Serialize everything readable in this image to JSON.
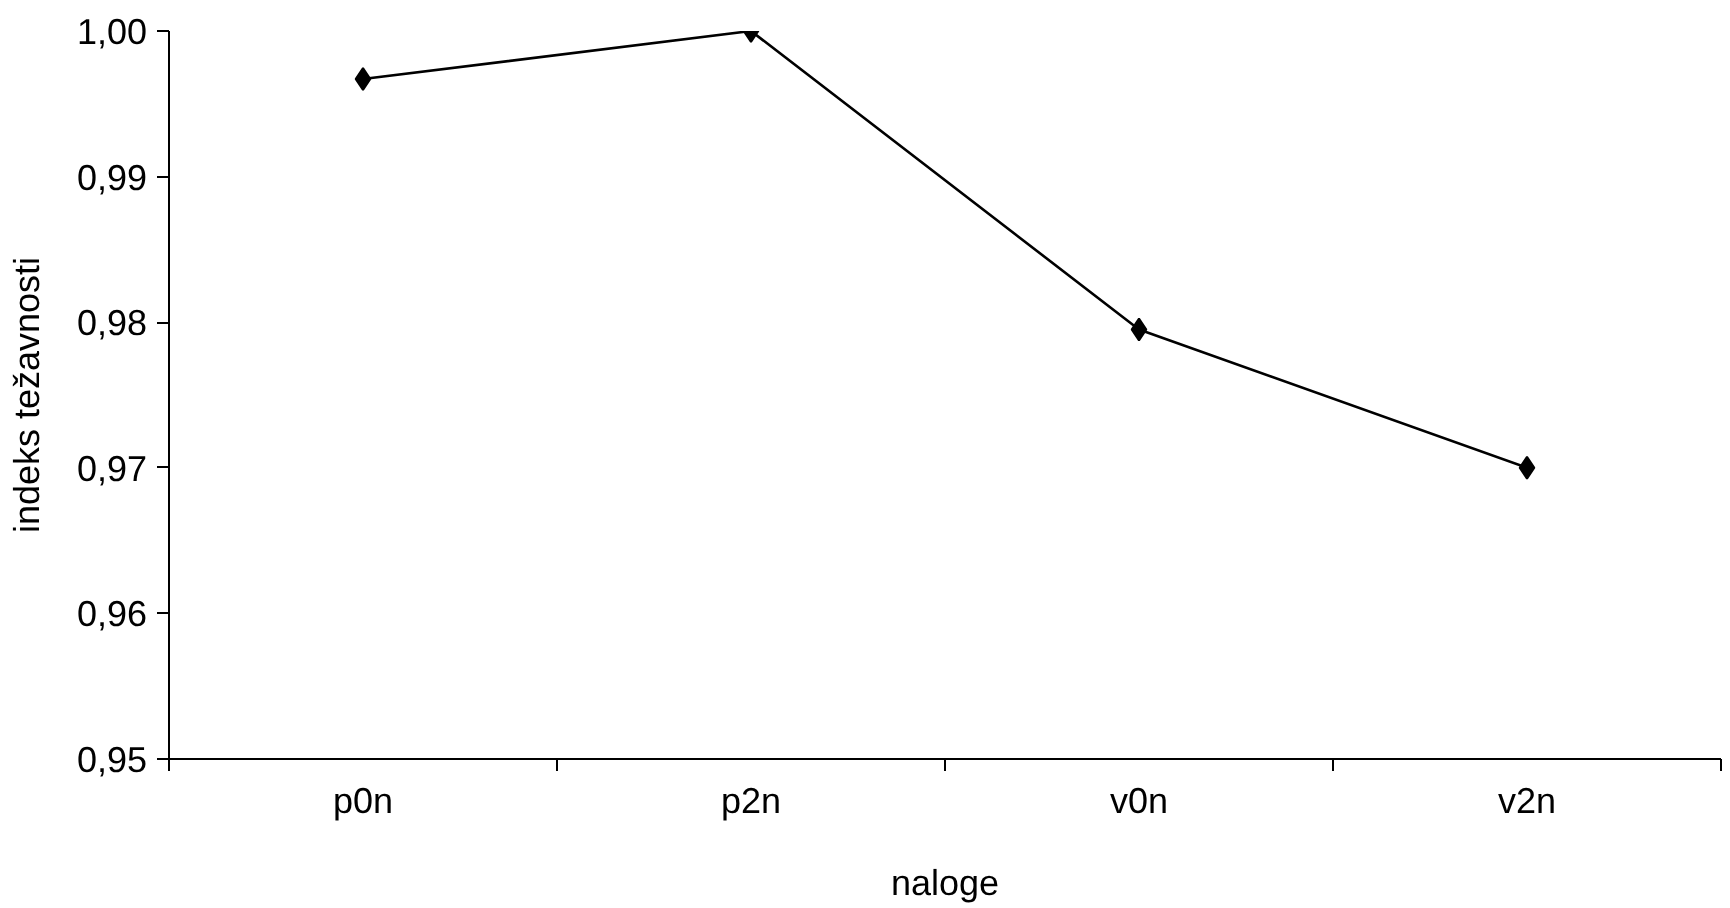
{
  "chart_data": {
    "type": "line",
    "xlabel": "naloge",
    "ylabel": "indeks težavnosti",
    "categories": [
      "p0n",
      "p2n",
      "v0n",
      "v2n"
    ],
    "series": [
      {
        "color": "#000000",
        "values": [
          0.9967,
          1.0,
          0.9795,
          0.97
        ]
      }
    ],
    "ylim": [
      0.95,
      1.0
    ],
    "yticks": [
      {
        "value": 0.95,
        "label": "0,95"
      },
      {
        "value": 0.96,
        "label": "0,96"
      },
      {
        "value": 0.97,
        "label": "0,97"
      },
      {
        "value": 0.98,
        "label": "0,98"
      },
      {
        "value": 0.99,
        "label": "0,99"
      },
      {
        "value": 1.0,
        "label": "1,00"
      }
    ],
    "grid": false,
    "marker": "diamond",
    "line_style": "solid"
  }
}
